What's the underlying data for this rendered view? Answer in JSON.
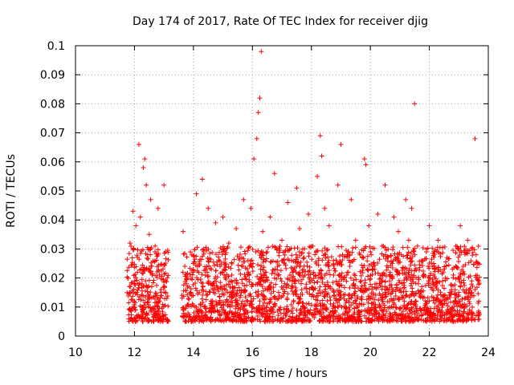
{
  "chart_data": {
    "type": "scatter",
    "title": "Day 174 of 2017, Rate Of TEC Index for receiver djig",
    "xlabel": "GPS time / hours",
    "ylabel": "ROTI / TECUs",
    "xlim": [
      10,
      24
    ],
    "ylim": [
      0,
      0.1
    ],
    "x_ticks": [
      10,
      12,
      14,
      16,
      18,
      20,
      22,
      24
    ],
    "x_tick_labels": [
      "10",
      "12",
      "14",
      "16",
      "18",
      "20",
      "22",
      "24"
    ],
    "y_ticks": [
      0,
      0.01,
      0.02,
      0.03,
      0.04,
      0.05,
      0.06,
      0.07,
      0.08,
      0.09,
      0.1
    ],
    "y_tick_labels": [
      "0",
      "0.01",
      "0.02",
      "0.03",
      "0.04",
      "0.05",
      "0.06",
      "0.07",
      "0.08",
      "0.09",
      "0.1"
    ],
    "grid": true,
    "legend": "none",
    "marker": "plus",
    "color": "#ff0000",
    "series": [
      {
        "name": "ROTI",
        "x": [
          11.75,
          11.85,
          11.95,
          12.0,
          12.05,
          12.1,
          12.15,
          12.2,
          12.3,
          12.35,
          12.4,
          12.45,
          12.5,
          12.55,
          12.6,
          12.7,
          12.8,
          12.9,
          13.0,
          13.05,
          13.1,
          13.65,
          13.75,
          13.85,
          14.0,
          14.1,
          14.2,
          14.3,
          14.35,
          14.5,
          14.6,
          14.75,
          14.9,
          15.0,
          15.1,
          15.2,
          15.3,
          15.45,
          15.6,
          15.7,
          15.85,
          15.95,
          16.05,
          16.15,
          16.2,
          16.25,
          16.3,
          16.35,
          16.4,
          16.5,
          16.6,
          16.75,
          16.85,
          17.0,
          17.2,
          17.35,
          17.5,
          17.6,
          17.75,
          17.9,
          18.05,
          18.2,
          18.3,
          18.35,
          18.45,
          18.6,
          18.75,
          18.9,
          19.0,
          19.2,
          19.35,
          19.5,
          19.65,
          19.8,
          19.85,
          19.95,
          20.1,
          20.25,
          20.4,
          20.5,
          20.65,
          20.8,
          20.95,
          21.05,
          21.2,
          21.3,
          21.4,
          21.5,
          21.6,
          21.75,
          21.9,
          22.0,
          22.15,
          22.3,
          22.45,
          22.6,
          22.75,
          22.9,
          23.05,
          23.15,
          23.3,
          23.45,
          23.55,
          23.65
        ],
        "y": [
          0.015,
          0.032,
          0.043,
          0.018,
          0.038,
          0.022,
          0.066,
          0.041,
          0.058,
          0.061,
          0.052,
          0.028,
          0.035,
          0.047,
          0.021,
          0.031,
          0.044,
          0.016,
          0.052,
          0.029,
          0.013,
          0.036,
          0.021,
          0.017,
          0.025,
          0.049,
          0.015,
          0.054,
          0.029,
          0.044,
          0.018,
          0.039,
          0.024,
          0.041,
          0.016,
          0.032,
          0.021,
          0.037,
          0.014,
          0.047,
          0.026,
          0.044,
          0.061,
          0.068,
          0.077,
          0.082,
          0.098,
          0.036,
          0.021,
          0.029,
          0.041,
          0.056,
          0.024,
          0.033,
          0.046,
          0.019,
          0.051,
          0.037,
          0.027,
          0.042,
          0.031,
          0.055,
          0.069,
          0.062,
          0.044,
          0.038,
          0.026,
          0.052,
          0.066,
          0.021,
          0.047,
          0.033,
          0.028,
          0.061,
          0.059,
          0.038,
          0.024,
          0.042,
          0.031,
          0.052,
          0.019,
          0.041,
          0.036,
          0.028,
          0.047,
          0.033,
          0.044,
          0.08,
          0.031,
          0.017,
          0.029,
          0.038,
          0.025,
          0.033,
          0.019,
          0.027,
          0.016,
          0.031,
          0.038,
          0.024,
          0.033,
          0.014,
          0.068,
          0.025
        ]
      }
    ]
  }
}
